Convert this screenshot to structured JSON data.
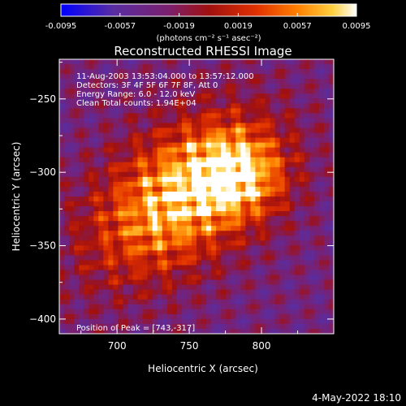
{
  "chart_data": {
    "type": "heatmap",
    "title": "Reconstructed RHESSI Image",
    "xlabel": "Heliocentric X (arcsec)",
    "ylabel": "Heliocentric Y (arcsec)",
    "xlim": [
      660,
      850
    ],
    "ylim": [
      -410,
      -223
    ],
    "xticks": [
      700,
      750,
      800
    ],
    "yticks": [
      -250,
      -300,
      -350,
      -400
    ],
    "colorbar": {
      "min": -0.0095,
      "max": 0.0095,
      "ticks": [
        "-0.0095",
        "-0.0057",
        "-0.0019",
        "0.0019",
        "0.0057",
        "0.0095"
      ],
      "units": "(photons cm⁻² s⁻¹ asec⁻²)",
      "colormap": [
        "#0000ff",
        "#5a2da0",
        "#7a2070",
        "#a01010",
        "#e03000",
        "#ff8000",
        "#ffd040",
        "#ffffff"
      ]
    },
    "peak": [
      743,
      -317
    ],
    "annotations": [
      "11-Aug-2003 13:53:04.000 to 13:57:12.000",
      "Detectors: 3F 4F 5F 6F 7F 8F, Att 0",
      "Energy Range: 6.0 - 12.0 keV",
      "Clean     Total counts: 1.94E+04"
    ],
    "peak_label": "Position of Peak = [743,-317]"
  },
  "footer": {
    "timestamp": "4-May-2022 18:10"
  }
}
